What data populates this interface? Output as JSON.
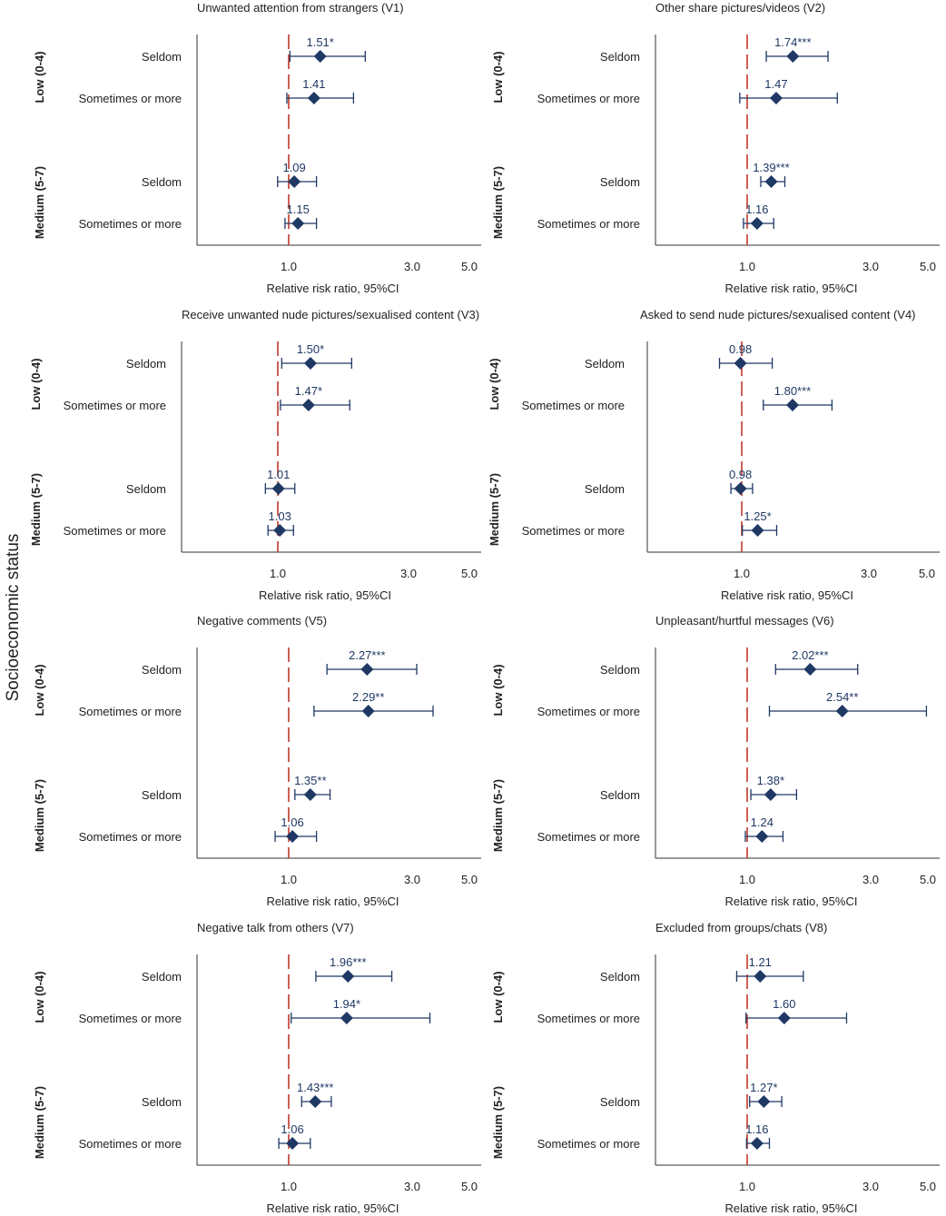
{
  "ylabel": "Socioeconomic status",
  "colors": {
    "marker": "#1f3864",
    "refline": "#c0392b",
    "label": "#1f3864",
    "axis": "#333333"
  },
  "chart_data": [
    {
      "type": "forest",
      "title": "Unwanted attention from strangers (V1)",
      "xlabel": "Relative risk ratio, 95%CI",
      "xticks": [
        "1.0",
        "3.0",
        "5.0"
      ],
      "reference": 1.0,
      "groups": [
        "Low (0-4)",
        "Medium (5-7)"
      ],
      "categories": [
        "Seldom",
        "Sometimes or more"
      ],
      "points": [
        {
          "group": "Low (0-4)",
          "category": "Seldom",
          "est": 1.51,
          "lo": 1.02,
          "hi": 2.24,
          "label": "1.51*"
        },
        {
          "group": "Low (0-4)",
          "category": "Sometimes or more",
          "est": 1.41,
          "lo": 0.97,
          "hi": 2.05,
          "label": "1.41"
        },
        {
          "group": "Medium (5-7)",
          "category": "Seldom",
          "est": 1.09,
          "lo": 0.82,
          "hi": 1.45,
          "label": "1.09"
        },
        {
          "group": "Medium (5-7)",
          "category": "Sometimes or more",
          "est": 1.15,
          "lo": 0.94,
          "hi": 1.45,
          "label": "1.15"
        }
      ]
    },
    {
      "type": "forest",
      "title": "Other share pictures/videos (V2)",
      "xlabel": "Relative risk ratio, 95%CI",
      "xticks": [
        "1.0",
        "3.0",
        "5.0"
      ],
      "reference": 1.0,
      "groups": [
        "Low (0-4)",
        "Medium (5-7)"
      ],
      "categories": [
        "Seldom",
        "Sometimes or more"
      ],
      "points": [
        {
          "group": "Low (0-4)",
          "category": "Seldom",
          "est": 1.74,
          "lo": 1.31,
          "hi": 2.31,
          "label": "1.74***"
        },
        {
          "group": "Low (0-4)",
          "category": "Sometimes or more",
          "est": 1.47,
          "lo": 0.88,
          "hi": 2.46,
          "label": "1.47"
        },
        {
          "group": "Medium (5-7)",
          "category": "Seldom",
          "est": 1.39,
          "lo": 1.22,
          "hi": 1.61,
          "label": "1.39***"
        },
        {
          "group": "Medium (5-7)",
          "category": "Sometimes or more",
          "est": 1.16,
          "lo": 0.94,
          "hi": 1.43,
          "label": "1.16"
        }
      ]
    },
    {
      "type": "forest",
      "title": "Receive unwanted nude pictures/sexualised content (V3)",
      "xlabel": "Relative risk ratio, 95%CI",
      "xticks": [
        "1.0",
        "3.0",
        "5.0"
      ],
      "reference": 1.0,
      "groups": [
        "Low (0-4)",
        "Medium (5-7)"
      ],
      "categories": [
        "Seldom",
        "Sometimes or more"
      ],
      "points": [
        {
          "group": "Low (0-4)",
          "category": "Seldom",
          "est": 1.5,
          "lo": 1.06,
          "hi": 2.13,
          "label": "1.50*"
        },
        {
          "group": "Low (0-4)",
          "category": "Sometimes or more",
          "est": 1.47,
          "lo": 1.04,
          "hi": 2.1,
          "label": "1.47*"
        },
        {
          "group": "Medium (5-7)",
          "category": "Seldom",
          "est": 1.01,
          "lo": 0.81,
          "hi": 1.26,
          "label": "1.01"
        },
        {
          "group": "Medium (5-7)",
          "category": "Sometimes or more",
          "est": 1.03,
          "lo": 0.85,
          "hi": 1.24,
          "label": "1.03"
        }
      ]
    },
    {
      "type": "forest",
      "title": "Asked to send nude pictures/sexualised content (V4)",
      "xlabel": "Relative risk ratio, 95%CI",
      "xticks": [
        "1.0",
        "3.0",
        "5.0"
      ],
      "reference": 1.0,
      "groups": [
        "Low (0-4)",
        "Medium (5-7)"
      ],
      "categories": [
        "Seldom",
        "Sometimes or more"
      ],
      "points": [
        {
          "group": "Low (0-4)",
          "category": "Seldom",
          "est": 0.98,
          "lo": 0.65,
          "hi": 1.48,
          "label": "0.98"
        },
        {
          "group": "Low (0-4)",
          "category": "Sometimes or more",
          "est": 1.8,
          "lo": 1.34,
          "hi": 2.42,
          "label": "1.80***"
        },
        {
          "group": "Medium (5-7)",
          "category": "Seldom",
          "est": 0.98,
          "lo": 0.83,
          "hi": 1.17,
          "label": "0.98"
        },
        {
          "group": "Medium (5-7)",
          "category": "Sometimes or more",
          "est": 1.25,
          "lo": 1.01,
          "hi": 1.55,
          "label": "1.25*"
        }
      ]
    },
    {
      "type": "forest",
      "title": "Negative comments (V5)",
      "xlabel": "Relative risk ratio, 95%CI",
      "xticks": [
        "1.0",
        "3.0",
        "5.0"
      ],
      "reference": 1.0,
      "groups": [
        "Low (0-4)",
        "Medium (5-7)"
      ],
      "categories": [
        "Seldom",
        "Sometimes or more"
      ],
      "points": [
        {
          "group": "Low (0-4)",
          "category": "Seldom",
          "est": 2.27,
          "lo": 1.62,
          "hi": 3.16,
          "label": "2.27***"
        },
        {
          "group": "Low (0-4)",
          "category": "Sometimes or more",
          "est": 2.29,
          "lo": 1.41,
          "hi": 3.73,
          "label": "2.29**"
        },
        {
          "group": "Medium (5-7)",
          "category": "Seldom",
          "est": 1.35,
          "lo": 1.1,
          "hi": 1.67,
          "label": "1.35**"
        },
        {
          "group": "Medium (5-7)",
          "category": "Sometimes or more",
          "est": 1.06,
          "lo": 0.78,
          "hi": 1.45,
          "label": "1.06"
        }
      ]
    },
    {
      "type": "forest",
      "title": "Unpleasant/hurtful messages (V6)",
      "xlabel": "Relative risk ratio, 95%CI",
      "xticks": [
        "1.0",
        "3.0",
        "5.0"
      ],
      "reference": 1.0,
      "groups": [
        "Low (0-4)",
        "Medium (5-7)"
      ],
      "categories": [
        "Seldom",
        "Sometimes or more"
      ],
      "points": [
        {
          "group": "Low (0-4)",
          "category": "Seldom",
          "est": 2.02,
          "lo": 1.46,
          "hi": 2.79,
          "label": "2.02***"
        },
        {
          "group": "Low (0-4)",
          "category": "Sometimes or more",
          "est": 2.54,
          "lo": 1.36,
          "hi": 4.95,
          "label": "2.54**"
        },
        {
          "group": "Medium (5-7)",
          "category": "Seldom",
          "est": 1.38,
          "lo": 1.06,
          "hi": 1.8,
          "label": "1.38*"
        },
        {
          "group": "Medium (5-7)",
          "category": "Sometimes or more",
          "est": 1.24,
          "lo": 0.97,
          "hi": 1.58,
          "label": "1.24"
        }
      ]
    },
    {
      "type": "forest",
      "title": "Negative talk from others (V7)",
      "xlabel": "Relative risk ratio, 95%CI",
      "xticks": [
        "1.0",
        "3.0",
        "5.0"
      ],
      "reference": 1.0,
      "groups": [
        "Low (0-4)",
        "Medium (5-7)"
      ],
      "categories": [
        "Seldom",
        "Sometimes or more"
      ],
      "points": [
        {
          "group": "Low (0-4)",
          "category": "Seldom",
          "est": 1.96,
          "lo": 1.44,
          "hi": 2.67,
          "label": "1.96***"
        },
        {
          "group": "Low (0-4)",
          "category": "Sometimes or more",
          "est": 1.94,
          "lo": 1.04,
          "hi": 3.62,
          "label": "1.94*"
        },
        {
          "group": "Medium (5-7)",
          "category": "Seldom",
          "est": 1.43,
          "lo": 1.21,
          "hi": 1.69,
          "label": "1.43***"
        },
        {
          "group": "Medium (5-7)",
          "category": "Sometimes or more",
          "est": 1.06,
          "lo": 0.84,
          "hi": 1.35,
          "label": "1.06"
        }
      ]
    },
    {
      "type": "forest",
      "title": "Excluded from groups/chats (V8)",
      "xlabel": "Relative risk ratio, 95%CI",
      "xticks": [
        "1.0",
        "3.0",
        "5.0"
      ],
      "reference": 1.0,
      "groups": [
        "Low (0-4)",
        "Medium (5-7)"
      ],
      "categories": [
        "Seldom",
        "Sometimes or more"
      ],
      "points": [
        {
          "group": "Low (0-4)",
          "category": "Seldom",
          "est": 1.21,
          "lo": 0.83,
          "hi": 1.91,
          "label": "1.21"
        },
        {
          "group": "Low (0-4)",
          "category": "Sometimes or more",
          "est": 1.6,
          "lo": 0.98,
          "hi": 2.61,
          "label": "1.60"
        },
        {
          "group": "Medium (5-7)",
          "category": "Seldom",
          "est": 1.27,
          "lo": 1.04,
          "hi": 1.56,
          "label": "1.27*"
        },
        {
          "group": "Medium (5-7)",
          "category": "Sometimes or more",
          "est": 1.16,
          "lo": 0.99,
          "hi": 1.36,
          "label": "1.16"
        }
      ]
    }
  ]
}
